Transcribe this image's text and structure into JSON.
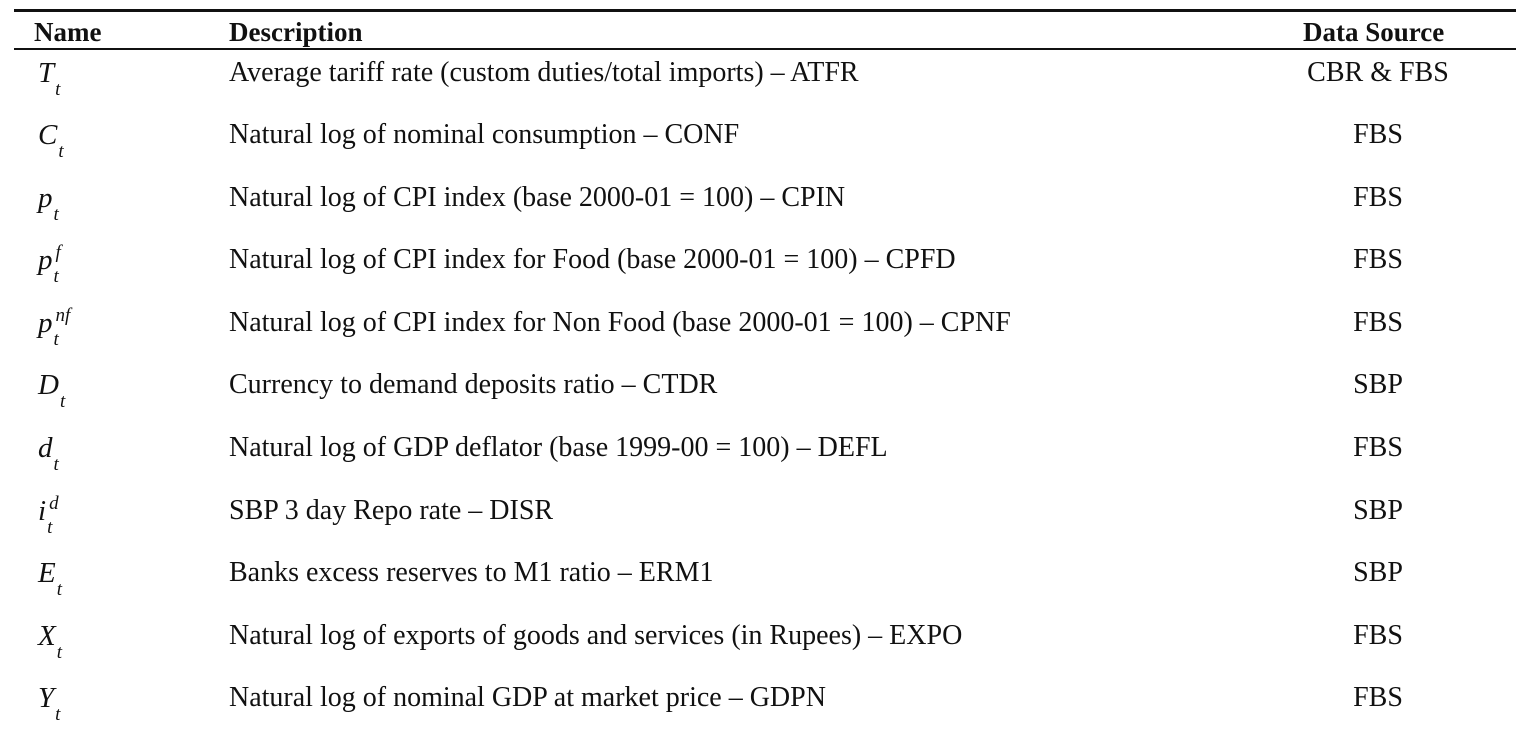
{
  "table": {
    "headers": {
      "name": "Name",
      "description": "Description",
      "source": "Data Source"
    },
    "rows": [
      {
        "symbol": "T",
        "sub": "t",
        "sup": "",
        "description": "Average tariff rate (custom duties/total imports) – ATFR",
        "source": "CBR & FBS"
      },
      {
        "symbol": "C",
        "sub": "t",
        "sup": "",
        "description": "Natural log of nominal consumption – CONF",
        "source": "FBS"
      },
      {
        "symbol": "p",
        "sub": "t",
        "sup": "",
        "description": "Natural log of CPI index (base 2000-01 = 100) – CPIN",
        "source": "FBS"
      },
      {
        "symbol": "p",
        "sub": "t",
        "sup": "f",
        "description": "Natural log of CPI index for Food (base 2000-01 = 100) – CPFD",
        "source": "FBS"
      },
      {
        "symbol": "p",
        "sub": "t",
        "sup": "nf",
        "description": "Natural log of CPI index for Non Food (base 2000-01 = 100) – CPNF",
        "source": "FBS"
      },
      {
        "symbol": "D",
        "sub": "t",
        "sup": "",
        "description": "Currency to demand deposits ratio – CTDR",
        "source": "SBP"
      },
      {
        "symbol": "d",
        "sub": "t",
        "sup": "",
        "description": "Natural log of GDP deflator (base 1999-00 = 100) – DEFL",
        "source": "FBS"
      },
      {
        "symbol": "i",
        "sub": "t",
        "sup": "d",
        "description": "SBP 3 day Repo rate – DISR",
        "source": "SBP"
      },
      {
        "symbol": "E",
        "sub": "t",
        "sup": "",
        "description": "Banks excess reserves to M1 ratio – ERM1",
        "source": "SBP"
      },
      {
        "symbol": "X",
        "sub": "t",
        "sup": "",
        "description": "Natural log of exports of goods and services (in Rupees) – EXPO",
        "source": "FBS"
      },
      {
        "symbol": "Y",
        "sub": "t",
        "sup": "",
        "description": "Natural log of nominal GDP at market price – GDPN",
        "source": "FBS"
      }
    ]
  }
}
